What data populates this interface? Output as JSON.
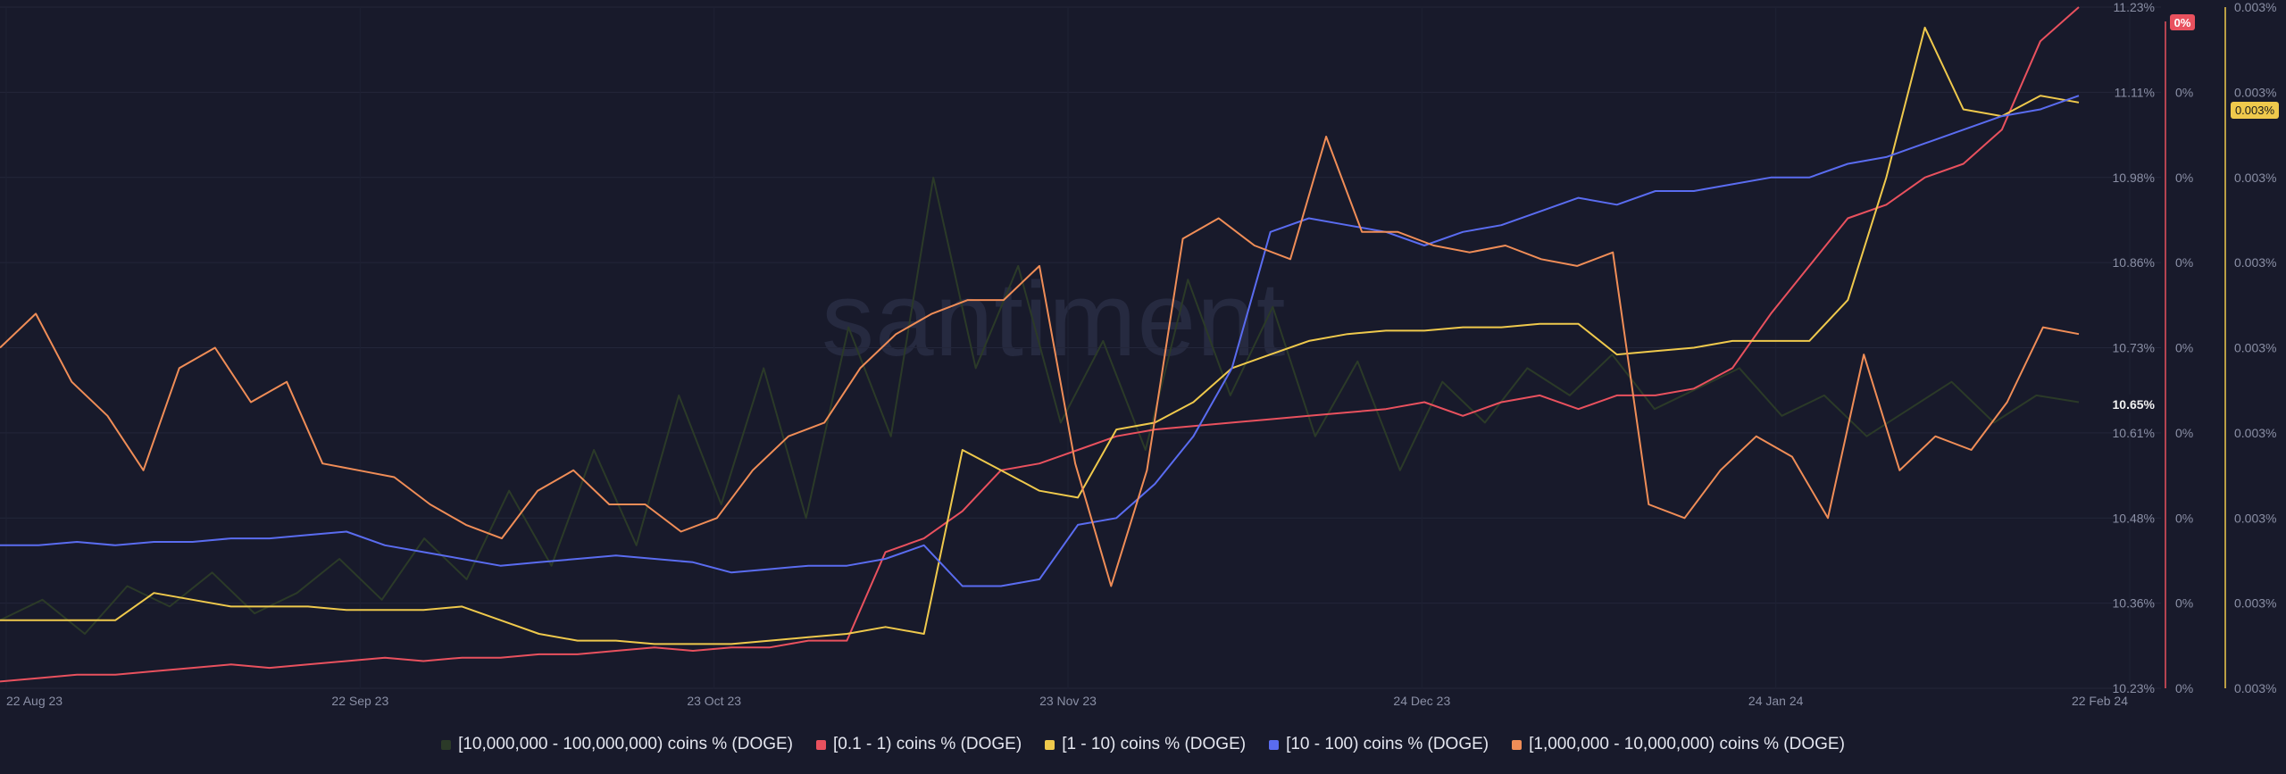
{
  "watermark": "santiment",
  "chart_data": {
    "type": "line",
    "x_ticks": [
      "22 Aug 23",
      "22 Sep 23",
      "23 Oct 23",
      "23 Nov 23",
      "24 Dec 23",
      "24 Jan 24",
      "22 Feb 24"
    ],
    "ylim": [
      10.23,
      11.23
    ],
    "y_ticks": [
      "11.23%",
      "11.11%",
      "10.98%",
      "10.86%",
      "10.73%",
      "10.61%",
      "10.48%",
      "10.36%",
      "10.23%"
    ],
    "y2_ticks": [
      "0%",
      "0%",
      "0%",
      "0%",
      "0%",
      "0%",
      "0%",
      "0%",
      "0%"
    ],
    "y2_badge": "0%",
    "y3_ticks": [
      "0.003%",
      "0.003%",
      "0.003%",
      "0.003%",
      "0.003%",
      "0.003%",
      "0.003%",
      "0.003%",
      "0.003%"
    ],
    "y3_badge": "0.003%",
    "current_value_label": "10.65%",
    "grid": true,
    "legend_position": "bottom",
    "series": [
      {
        "name": "[10,000,000 - 100,000,000) coins % (DOGE)",
        "color": "#2b3a28",
        "values": [
          10.33,
          10.36,
          10.31,
          10.38,
          10.35,
          10.4,
          10.34,
          10.37,
          10.42,
          10.36,
          10.45,
          10.39,
          10.52,
          10.41,
          10.58,
          10.44,
          10.66,
          10.5,
          10.7,
          10.48,
          10.76,
          10.6,
          10.98,
          10.7,
          10.85,
          10.62,
          10.74,
          10.58,
          10.83,
          10.66,
          10.79,
          10.6,
          10.71,
          10.55,
          10.68,
          10.62,
          10.7,
          10.66,
          10.72,
          10.64,
          10.67,
          10.7,
          10.63,
          10.66,
          10.6,
          10.64,
          10.68,
          10.62,
          10.66,
          10.65
        ]
      },
      {
        "name": "[0.1 - 1) coins % (DOGE)",
        "color": "#e9515e",
        "values": [
          10.24,
          10.245,
          10.25,
          10.25,
          10.255,
          10.26,
          10.265,
          10.26,
          10.265,
          10.27,
          10.275,
          10.27,
          10.275,
          10.275,
          10.28,
          10.28,
          10.285,
          10.29,
          10.285,
          10.29,
          10.29,
          10.3,
          10.3,
          10.43,
          10.45,
          10.49,
          10.55,
          10.56,
          10.58,
          10.6,
          10.61,
          10.615,
          10.62,
          10.625,
          10.63,
          10.635,
          10.64,
          10.65,
          10.63,
          10.65,
          10.66,
          10.64,
          10.66,
          10.66,
          10.67,
          10.7,
          10.78,
          10.85,
          10.92,
          10.94,
          10.98,
          11.0,
          11.05,
          11.18,
          11.23
        ]
      },
      {
        "name": "[1 - 10) coins % (DOGE)",
        "color": "#efc94c",
        "values": [
          10.33,
          10.33,
          10.33,
          10.33,
          10.37,
          10.36,
          10.35,
          10.35,
          10.35,
          10.345,
          10.345,
          10.345,
          10.35,
          10.33,
          10.31,
          10.3,
          10.3,
          10.295,
          10.295,
          10.295,
          10.3,
          10.305,
          10.31,
          10.32,
          10.31,
          10.58,
          10.55,
          10.52,
          10.51,
          10.61,
          10.62,
          10.65,
          10.7,
          10.72,
          10.74,
          10.75,
          10.755,
          10.755,
          10.76,
          10.76,
          10.765,
          10.765,
          10.72,
          10.725,
          10.73,
          10.74,
          10.74,
          10.74,
          10.8,
          10.98,
          11.2,
          11.08,
          11.07,
          11.1,
          11.09
        ]
      },
      {
        "name": "[10 - 100) coins % (DOGE)",
        "color": "#5a6cf0",
        "values": [
          10.44,
          10.44,
          10.445,
          10.44,
          10.445,
          10.445,
          10.45,
          10.45,
          10.455,
          10.46,
          10.44,
          10.43,
          10.42,
          10.41,
          10.415,
          10.42,
          10.425,
          10.42,
          10.415,
          10.4,
          10.405,
          10.41,
          10.41,
          10.42,
          10.44,
          10.38,
          10.38,
          10.39,
          10.47,
          10.48,
          10.53,
          10.6,
          10.7,
          10.9,
          10.92,
          10.91,
          10.9,
          10.88,
          10.9,
          10.91,
          10.93,
          10.95,
          10.94,
          10.96,
          10.96,
          10.97,
          10.98,
          10.98,
          11.0,
          11.01,
          11.03,
          11.05,
          11.07,
          11.08,
          11.1
        ]
      },
      {
        "name": "[1,000,000 - 10,000,000) coins % (DOGE)",
        "color": "#f08d57",
        "values": [
          10.73,
          10.78,
          10.68,
          10.63,
          10.55,
          10.7,
          10.73,
          10.65,
          10.68,
          10.56,
          10.55,
          10.54,
          10.5,
          10.47,
          10.45,
          10.52,
          10.55,
          10.5,
          10.5,
          10.46,
          10.48,
          10.55,
          10.6,
          10.62,
          10.7,
          10.75,
          10.78,
          10.8,
          10.8,
          10.85,
          10.56,
          10.38,
          10.55,
          10.89,
          10.92,
          10.88,
          10.86,
          11.04,
          10.9,
          10.9,
          10.88,
          10.87,
          10.88,
          10.86,
          10.85,
          10.87,
          10.5,
          10.48,
          10.55,
          10.6,
          10.57,
          10.48,
          10.72,
          10.55,
          10.6,
          10.58,
          10.65,
          10.76,
          10.75
        ]
      }
    ]
  },
  "legend": [
    {
      "label": "[10,000,000 - 100,000,000) coins % (DOGE)",
      "color": "#2b3a28"
    },
    {
      "label": "[0.1 - 1) coins % (DOGE)",
      "color": "#e9515e"
    },
    {
      "label": "[1 - 10) coins % (DOGE)",
      "color": "#efc94c"
    },
    {
      "label": "[10 - 100) coins % (DOGE)",
      "color": "#5a6cf0"
    },
    {
      "label": "[1,000,000 - 10,000,000) coins % (DOGE)",
      "color": "#f08d57"
    }
  ]
}
